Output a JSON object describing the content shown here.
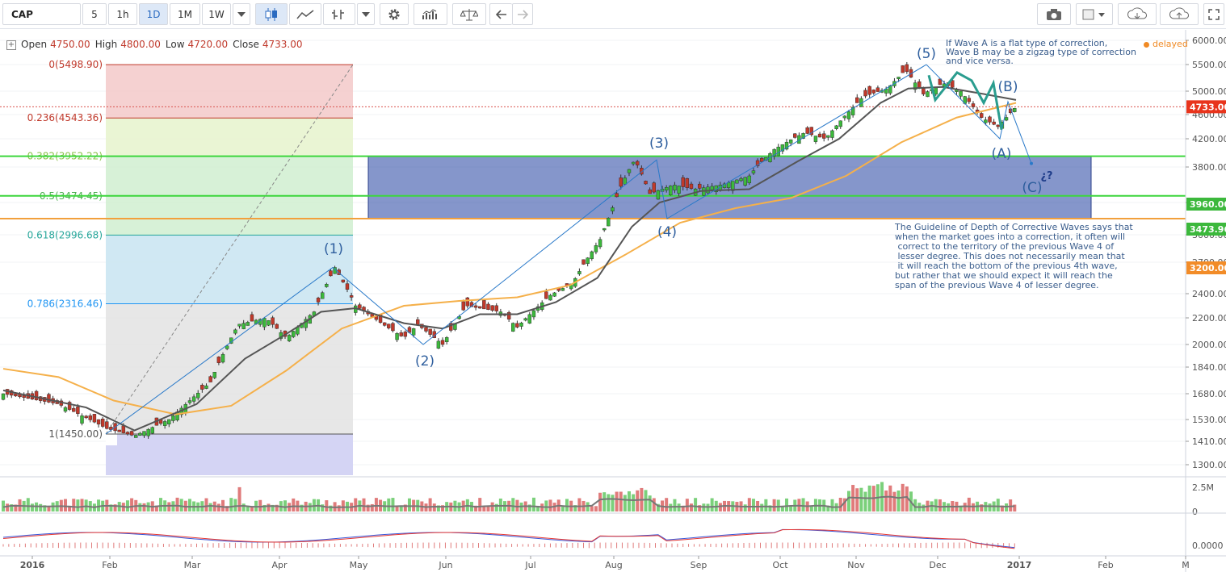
{
  "toolbar": {
    "symbol": "CAP",
    "intervals": [
      "5",
      "1h",
      "1D",
      "1M",
      "1W"
    ],
    "active_interval": "1D"
  },
  "legend": {
    "open_label": "Open",
    "open": "4750.00",
    "high_label": "High",
    "high": "4800.00",
    "low_label": "Low",
    "low": "4720.00",
    "close_label": "Close",
    "close": "4733.00"
  },
  "status": {
    "delayed": "delayed"
  },
  "chart_data": {
    "type": "candlestick",
    "ylim": [
      1220,
      6100
    ],
    "y_ticks": [
      6000,
      5500,
      5000,
      4600,
      4200,
      3800,
      3400,
      3000,
      2700,
      2400,
      2200,
      2000,
      1840,
      1680,
      1530,
      1410,
      1300
    ],
    "y_tick_labels": [
      "6000.00",
      "5500.00",
      "5000.00",
      "4600.00",
      "4200.00",
      "3800.00",
      "3400.00",
      "3000.00",
      "2700.00",
      "2400.00",
      "2200.00",
      "2000.00",
      "1840.00",
      "1680.00",
      "1530.00",
      "1410.00",
      "1300.00"
    ],
    "x_labels": [
      "2016",
      "Feb",
      "Mar",
      "Apr",
      "May",
      "Jun",
      "Jul",
      "Aug",
      "Sep",
      "Oct",
      "Nov",
      "Dec",
      "2017",
      "Feb",
      "M"
    ],
    "price_badges": [
      {
        "value": "4733.00",
        "color": "#e8341c"
      },
      {
        "value": "3960.00",
        "color": "#3cb83c"
      },
      {
        "value": "3473.96",
        "color": "#3cb83c"
      },
      {
        "value": "3200.00",
        "color": "#f28c28"
      }
    ],
    "horizontal_lines": [
      {
        "price": 3952.22,
        "color": "#3cd63c"
      },
      {
        "price": 3474.45,
        "color": "#3cd63c"
      },
      {
        "price": 3200,
        "color": "#f2a03c"
      },
      {
        "price": 4733,
        "color": "#d9534f",
        "style": "dotted"
      }
    ],
    "fibonacci": {
      "levels": [
        {
          "ratio": "0",
          "price": 5498.9,
          "label": "0(5498.90)",
          "color": "#c0392b"
        },
        {
          "ratio": "0.236",
          "price": 4543.36,
          "label": "0.236(4543.36)",
          "color": "#c0392b"
        },
        {
          "ratio": "0.382",
          "price": 3952.22,
          "label": "0.382(3952.22)",
          "color": "#8bc34a"
        },
        {
          "ratio": "0.5",
          "price": 3474.45,
          "label": "0.5(3474.45)",
          "color": "#4caf50"
        },
        {
          "ratio": "0.618",
          "price": 2996.68,
          "label": "0.618(2996.68)",
          "color": "#26a69a"
        },
        {
          "ratio": "0.786",
          "price": 2316.46,
          "label": "0.786(2316.46)",
          "color": "#2196f3"
        },
        {
          "ratio": "1",
          "price": 1450.0,
          "label": "1(1450.00)",
          "color": "#555555"
        }
      ]
    },
    "rectangle": {
      "top": 3952.22,
      "bottom": 3200
    },
    "wave_labels": [
      "(1)",
      "(2)",
      "(3)",
      "(4)",
      "(5)",
      "(A)",
      "(B)",
      "(C)",
      "¿?"
    ],
    "annotations": [
      "If Wave A is a flat type of correction,\nWave B may be a zigzag type of correction\nand vice versa.",
      "The Guideline of Depth of Corrective Waves says that\nwhen the market goes into a correction, it often will\n correct to the territory of the previous Wave 4 of\n lesser degree. This does not necessarily mean that\n it will reach the bottom of the previous 4th wave,\nbut rather that we should expect it will reach the\nspan of the previous Wave 4 of lesser degree."
    ],
    "waypoints": [
      {
        "x": 0,
        "y": 1680
      },
      {
        "x": 40,
        "y": 1620
      },
      {
        "x": 75,
        "y": 1480
      },
      {
        "x": 95,
        "y": 1440
      },
      {
        "x": 120,
        "y": 1530
      },
      {
        "x": 150,
        "y": 1750
      },
      {
        "x": 170,
        "y": 2150
      },
      {
        "x": 190,
        "y": 2200
      },
      {
        "x": 205,
        "y": 2050
      },
      {
        "x": 225,
        "y": 2250
      },
      {
        "x": 240,
        "y": 2650
      },
      {
        "x": 255,
        "y": 2300
      },
      {
        "x": 275,
        "y": 2150
      },
      {
        "x": 290,
        "y": 2050
      },
      {
        "x": 300,
        "y": 2150
      },
      {
        "x": 318,
        "y": 2000
      },
      {
        "x": 335,
        "y": 2300
      },
      {
        "x": 360,
        "y": 2250
      },
      {
        "x": 372,
        "y": 2130
      },
      {
        "x": 395,
        "y": 2380
      },
      {
        "x": 412,
        "y": 2500
      },
      {
        "x": 432,
        "y": 2950
      },
      {
        "x": 446,
        "y": 3550
      },
      {
        "x": 457,
        "y": 3900
      },
      {
        "x": 468,
        "y": 3500
      },
      {
        "x": 485,
        "y": 3600
      },
      {
        "x": 500,
        "y": 3550
      },
      {
        "x": 520,
        "y": 3600
      },
      {
        "x": 540,
        "y": 3700
      },
      {
        "x": 558,
        "y": 4050
      },
      {
        "x": 580,
        "y": 4300
      },
      {
        "x": 595,
        "y": 4200
      },
      {
        "x": 608,
        "y": 4550
      },
      {
        "x": 622,
        "y": 4900
      },
      {
        "x": 640,
        "y": 5050
      },
      {
        "x": 653,
        "y": 5400
      },
      {
        "x": 666,
        "y": 4950
      },
      {
        "x": 680,
        "y": 5150
      },
      {
        "x": 693,
        "y": 5000
      },
      {
        "x": 708,
        "y": 4550
      },
      {
        "x": 720,
        "y": 4400
      },
      {
        "x": 733,
        "y": 4733
      }
    ],
    "ma20": [
      {
        "x": 0,
        "y": 1700
      },
      {
        "x": 60,
        "y": 1600
      },
      {
        "x": 95,
        "y": 1470
      },
      {
        "x": 140,
        "y": 1620
      },
      {
        "x": 175,
        "y": 1900
      },
      {
        "x": 205,
        "y": 2080
      },
      {
        "x": 230,
        "y": 2250
      },
      {
        "x": 255,
        "y": 2280
      },
      {
        "x": 290,
        "y": 2160
      },
      {
        "x": 318,
        "y": 2120
      },
      {
        "x": 345,
        "y": 2230
      },
      {
        "x": 372,
        "y": 2230
      },
      {
        "x": 400,
        "y": 2330
      },
      {
        "x": 430,
        "y": 2550
      },
      {
        "x": 455,
        "y": 3100
      },
      {
        "x": 475,
        "y": 3400
      },
      {
        "x": 505,
        "y": 3530
      },
      {
        "x": 540,
        "y": 3550
      },
      {
        "x": 575,
        "y": 3880
      },
      {
        "x": 605,
        "y": 4200
      },
      {
        "x": 635,
        "y": 4800
      },
      {
        "x": 655,
        "y": 5050
      },
      {
        "x": 680,
        "y": 5080
      },
      {
        "x": 710,
        "y": 4950
      },
      {
        "x": 733,
        "y": 4850
      }
    ],
    "ma50": [
      {
        "x": 0,
        "y": 1830
      },
      {
        "x": 40,
        "y": 1780
      },
      {
        "x": 80,
        "y": 1640
      },
      {
        "x": 125,
        "y": 1560
      },
      {
        "x": 165,
        "y": 1610
      },
      {
        "x": 205,
        "y": 1820
      },
      {
        "x": 245,
        "y": 2120
      },
      {
        "x": 290,
        "y": 2300
      },
      {
        "x": 330,
        "y": 2340
      },
      {
        "x": 372,
        "y": 2370
      },
      {
        "x": 410,
        "y": 2480
      },
      {
        "x": 450,
        "y": 2780
      },
      {
        "x": 490,
        "y": 3150
      },
      {
        "x": 530,
        "y": 3330
      },
      {
        "x": 570,
        "y": 3450
      },
      {
        "x": 610,
        "y": 3700
      },
      {
        "x": 650,
        "y": 4150
      },
      {
        "x": 690,
        "y": 4550
      },
      {
        "x": 733,
        "y": 4800
      }
    ],
    "volume_series": "volume (max 2.5M)",
    "volume_ticks": [
      "2.5M",
      "0"
    ],
    "oscillator_tick": "0.0000"
  }
}
